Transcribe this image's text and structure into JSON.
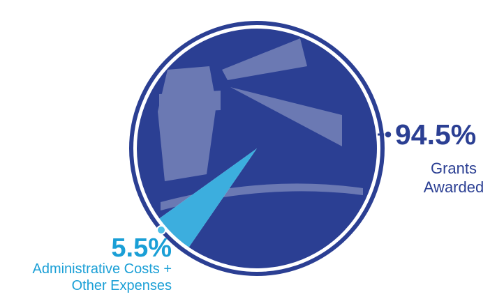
{
  "chart_data": {
    "type": "pie",
    "categories": [
      "Grants Awarded",
      "Administrative Costs + Other Expenses"
    ],
    "values": [
      94.5,
      5.5
    ],
    "value_labels": [
      "94.5%",
      "5.5%"
    ],
    "colors": [
      "#2b3f93",
      "#1aa0d8"
    ]
  }
}
